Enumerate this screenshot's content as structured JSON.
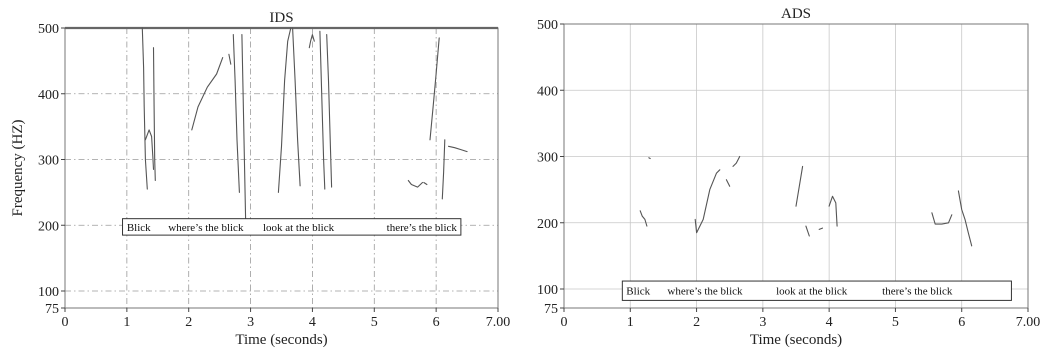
{
  "chart_data": [
    {
      "type": "line",
      "title": "IDS",
      "xlabel": "Time (seconds)",
      "ylabel": "Frequency (HZ)",
      "xlim": [
        0,
        7
      ],
      "ylim": [
        75,
        500
      ],
      "x_ticks": [
        0,
        1,
        2,
        3,
        4,
        5,
        6,
        7
      ],
      "x_tick_labels": [
        "0",
        "1",
        "2",
        "3",
        "4",
        "5",
        "6",
        "7.00"
      ],
      "y_ticks": [
        75,
        100,
        200,
        300,
        400,
        500
      ],
      "y_tick_labels": [
        "75",
        "100",
        "200",
        "300",
        "400",
        "500"
      ],
      "grid": "dash-dot",
      "grid_vertical_style": "dash-dot",
      "phrase_box": {
        "y_range": [
          185,
          210
        ],
        "x_range": [
          0.93,
          6.4
        ],
        "labels": [
          {
            "text": "Blick",
            "x": 1.0
          },
          {
            "text": "where’s the blick",
            "x": 1.67
          },
          {
            "text": "look at the blick",
            "x": 3.2
          },
          {
            "text": "there’s the blick",
            "x": 5.2
          }
        ]
      },
      "series": [
        {
          "values": [
            [
              1.25,
              500
            ],
            [
              1.27,
              440
            ],
            [
              1.28,
              380
            ],
            [
              1.3,
              300
            ],
            [
              1.33,
              255
            ]
          ]
        },
        {
          "values": [
            [
              1.3,
              330
            ],
            [
              1.36,
              345
            ],
            [
              1.4,
              335
            ],
            [
              1.42,
              305
            ],
            [
              1.43,
              285
            ]
          ]
        },
        {
          "values": [
            [
              1.43,
              470
            ],
            [
              1.44,
              380
            ],
            [
              1.45,
              300
            ],
            [
              1.46,
              268
            ]
          ]
        },
        {
          "values": [
            [
              2.05,
              345
            ],
            [
              2.15,
              380
            ],
            [
              2.3,
              410
            ],
            [
              2.45,
              430
            ],
            [
              2.55,
              455
            ]
          ]
        },
        {
          "values": [
            [
              2.65,
              460
            ],
            [
              2.68,
              445
            ]
          ]
        },
        {
          "values": [
            [
              2.72,
              490
            ],
            [
              2.75,
              420
            ],
            [
              2.78,
              330
            ],
            [
              2.82,
              250
            ]
          ]
        },
        {
          "values": [
            [
              2.86,
              490
            ],
            [
              2.88,
              400
            ],
            [
              2.9,
              300
            ],
            [
              2.92,
              210
            ]
          ]
        },
        {
          "values": [
            [
              3.45,
              250
            ],
            [
              3.5,
              320
            ],
            [
              3.55,
              420
            ],
            [
              3.6,
              480
            ],
            [
              3.65,
              500
            ]
          ]
        },
        {
          "values": [
            [
              3.68,
              500
            ],
            [
              3.72,
              420
            ],
            [
              3.76,
              330
            ],
            [
              3.8,
              260
            ]
          ]
        },
        {
          "values": [
            [
              3.95,
              470
            ],
            [
              3.97,
              480
            ],
            [
              4.0,
              490
            ],
            [
              4.03,
              480
            ]
          ]
        },
        {
          "values": [
            [
              4.12,
              495
            ],
            [
              4.15,
              400
            ],
            [
              4.18,
              300
            ],
            [
              4.2,
              255
            ]
          ]
        },
        {
          "values": [
            [
              4.23,
              490
            ],
            [
              4.26,
              420
            ],
            [
              4.29,
              320
            ],
            [
              4.31,
              258
            ]
          ]
        },
        {
          "values": [
            [
              5.55,
              268
            ],
            [
              5.6,
              262
            ],
            [
              5.7,
              258
            ],
            [
              5.78,
              265
            ]
          ]
        },
        {
          "values": [
            [
              5.8,
              265
            ],
            [
              5.85,
              262
            ]
          ]
        },
        {
          "values": [
            [
              6.05,
              485
            ],
            [
              6.0,
              430
            ],
            [
              5.95,
              380
            ],
            [
              5.9,
              330
            ]
          ]
        },
        {
          "values": [
            [
              6.1,
              240
            ],
            [
              6.12,
              280
            ],
            [
              6.14,
              330
            ]
          ]
        },
        {
          "values": [
            [
              6.2,
              320
            ],
            [
              6.3,
              318
            ],
            [
              6.4,
              315
            ],
            [
              6.5,
              312
            ]
          ]
        }
      ]
    },
    {
      "type": "line",
      "title": "ADS",
      "xlabel": "Time (seconds)",
      "ylabel": "",
      "xlim": [
        0,
        7
      ],
      "ylim": [
        75,
        500
      ],
      "x_ticks": [
        0,
        1,
        2,
        3,
        4,
        5,
        6,
        7
      ],
      "x_tick_labels": [
        "0",
        "1",
        "2",
        "3",
        "4",
        "5",
        "6",
        "7.00"
      ],
      "y_ticks": [
        75,
        100,
        200,
        300,
        400,
        500
      ],
      "y_tick_labels": [
        "75",
        "100",
        "200",
        "300",
        "400",
        "500"
      ],
      "grid": "solid",
      "phrase_box": {
        "y_range": [
          85,
          112
        ],
        "x_range": [
          0.88,
          6.75
        ],
        "labels": [
          {
            "text": "Blick",
            "x": 0.94
          },
          {
            "text": "where’s the blick",
            "x": 1.56
          },
          {
            "text": "look at the blick",
            "x": 3.2
          },
          {
            "text": "there’s the blick",
            "x": 4.8
          }
        ]
      },
      "series": [
        {
          "values": [
            [
              1.15,
              218
            ],
            [
              1.18,
              210
            ],
            [
              1.22,
              205
            ],
            [
              1.25,
              195
            ]
          ]
        },
        {
          "values": [
            [
              1.28,
              298
            ],
            [
              1.3,
              297
            ]
          ]
        },
        {
          "values": [
            [
              1.98,
              205
            ],
            [
              2.0,
              185
            ],
            [
              2.1,
              205
            ],
            [
              2.2,
              250
            ],
            [
              2.3,
              275
            ],
            [
              2.35,
              280
            ]
          ]
        },
        {
          "values": [
            [
              2.45,
              265
            ],
            [
              2.5,
              255
            ]
          ]
        },
        {
          "values": [
            [
              2.55,
              285
            ],
            [
              2.6,
              290
            ],
            [
              2.65,
              300
            ]
          ]
        },
        {
          "values": [
            [
              3.5,
              225
            ],
            [
              3.55,
              255
            ],
            [
              3.6,
              285
            ]
          ]
        },
        {
          "values": [
            [
              3.65,
              195
            ],
            [
              3.7,
              180
            ]
          ]
        },
        {
          "values": [
            [
              3.85,
              190
            ],
            [
              3.9,
              192
            ]
          ]
        },
        {
          "values": [
            [
              4.0,
              225
            ],
            [
              4.05,
              240
            ],
            [
              4.1,
              230
            ],
            [
              4.12,
              195
            ]
          ]
        },
        {
          "values": [
            [
              5.55,
              215
            ],
            [
              5.6,
              198
            ],
            [
              5.7,
              198
            ],
            [
              5.8,
              200
            ],
            [
              5.85,
              212
            ]
          ]
        },
        {
          "values": [
            [
              5.95,
              248
            ],
            [
              6.0,
              220
            ],
            [
              6.05,
              205
            ],
            [
              6.1,
              185
            ],
            [
              6.15,
              165
            ]
          ]
        }
      ]
    }
  ]
}
